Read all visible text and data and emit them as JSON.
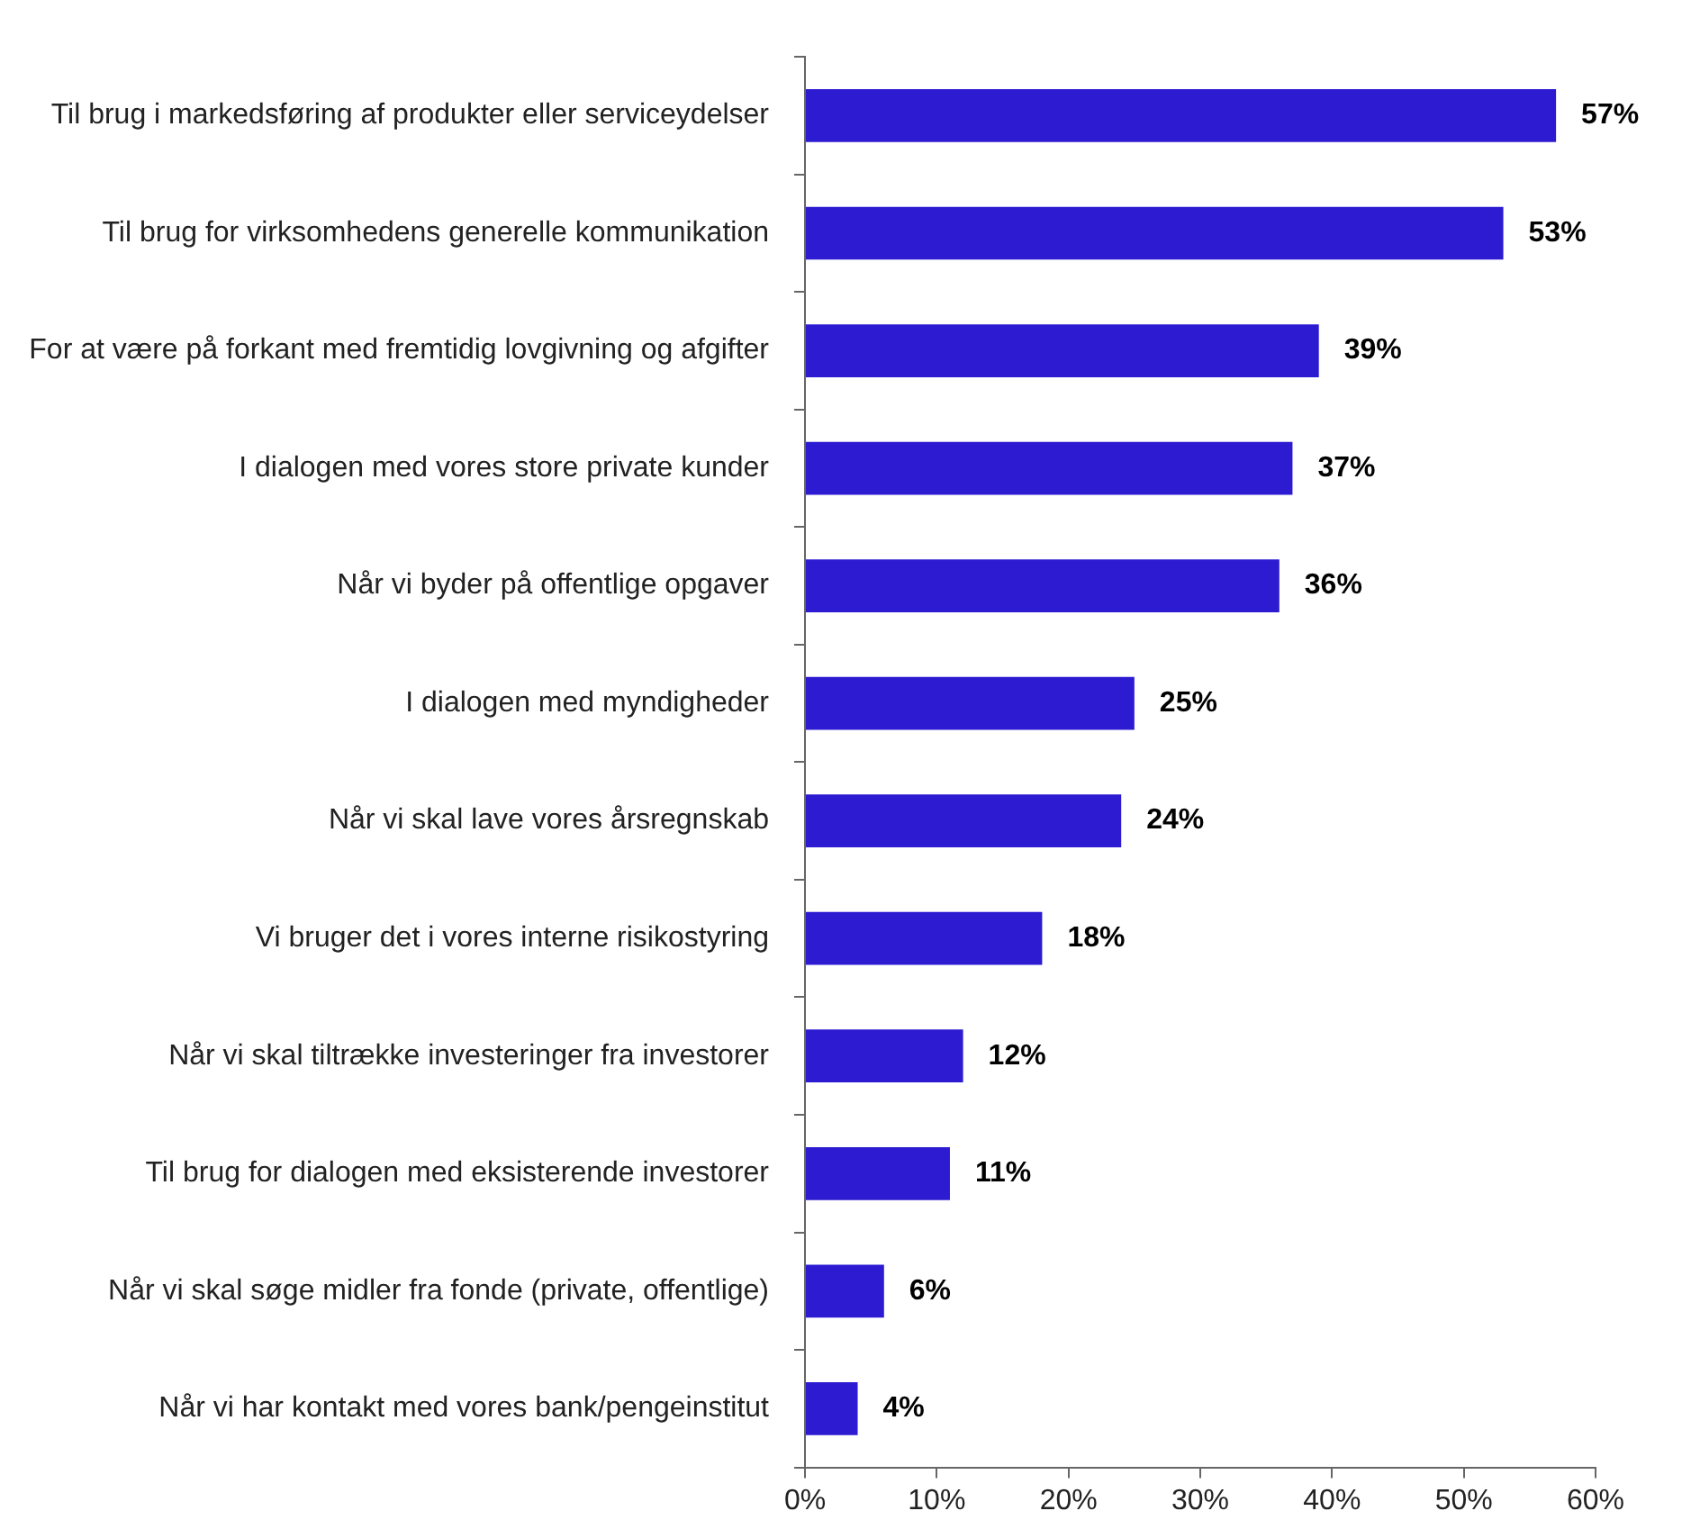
{
  "chart_data": {
    "type": "bar",
    "orientation": "horizontal",
    "categories": [
      "Til brug i markedsføring af produkter eller serviceydelser",
      "Til brug for virksomhedens generelle kommunikation",
      "For at være på forkant med fremtidig lovgivning og afgifter",
      "I dialogen med vores store private kunder",
      "Når vi byder på offentlige opgaver",
      "I dialogen med myndigheder",
      "Når vi skal lave vores årsregnskab",
      "Vi bruger det i vores interne risikostyring",
      "Når vi skal tiltrække investeringer fra investorer",
      "Til brug for dialogen med eksisterende investorer",
      "Når vi skal søge midler fra fonde (private, offentlige)",
      "Når vi har kontakt med vores bank/pengeinstitut"
    ],
    "values": [
      57,
      53,
      39,
      37,
      36,
      25,
      24,
      18,
      12,
      11,
      6,
      4
    ],
    "value_labels": [
      "57%",
      "53%",
      "39%",
      "37%",
      "36%",
      "25%",
      "24%",
      "18%",
      "12%",
      "11%",
      "6%",
      "4%"
    ],
    "color": "#2c1bd1",
    "xlim": [
      0,
      60
    ],
    "xticks": [
      {
        "value": 0,
        "label": "0%"
      },
      {
        "value": 10,
        "label": "10%"
      },
      {
        "value": 20,
        "label": "20%"
      },
      {
        "value": 30,
        "label": "30%"
      },
      {
        "value": 40,
        "label": "40%"
      },
      {
        "value": 50,
        "label": "50%"
      },
      {
        "value": 60,
        "label": "60%"
      }
    ],
    "grid": false,
    "legend": false
  }
}
